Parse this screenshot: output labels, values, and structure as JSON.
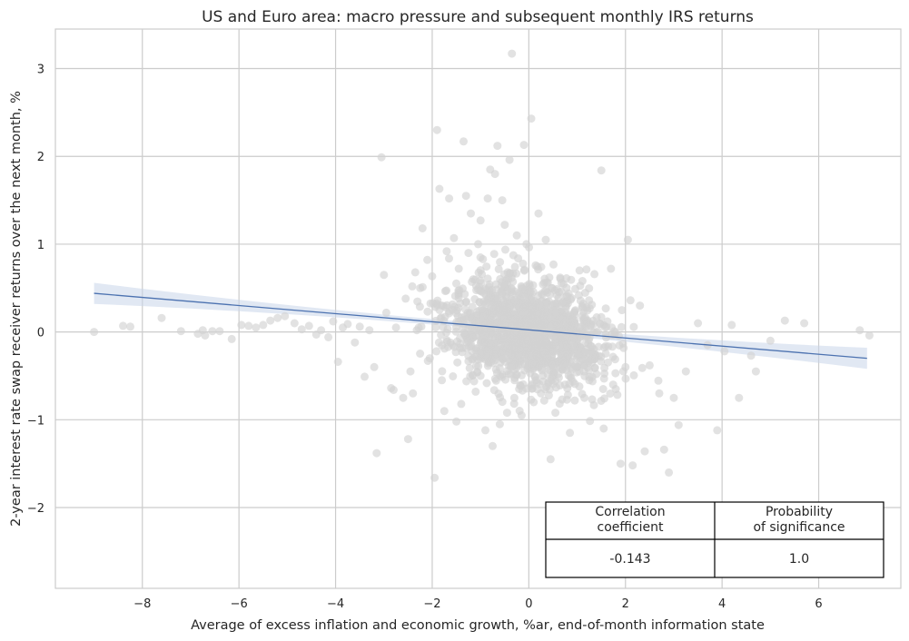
{
  "chart_data": {
    "type": "scatter",
    "title": "US and Euro area: macro pressure and subsequent monthly IRS returns",
    "xlabel": "Average of excess inflation and economic growth, %ar, end-of-month information state",
    "ylabel": "2-year interest rate swap receiver returns over the next month, %",
    "xlim": [
      -9.8,
      7.7
    ],
    "ylim": [
      -2.92,
      3.45
    ],
    "x_ticks": [
      -8,
      -6,
      -4,
      -2,
      0,
      2,
      4,
      6
    ],
    "y_ticks": [
      -2,
      -1,
      0,
      1,
      2,
      3
    ],
    "grid": true,
    "point_color": "#d3d3d3",
    "line_color": "#4c72b0",
    "band_color": "#c9d6ea",
    "regression": {
      "x_start": -9.0,
      "y_start": 0.44,
      "x_end": 7.0,
      "y_end": -0.3,
      "ci_half_width_ends": 0.12,
      "ci_half_width_center": 0.03
    },
    "points": [
      [
        -9.0,
        0.0
      ],
      [
        -8.4,
        0.07
      ],
      [
        -8.25,
        0.06
      ],
      [
        -7.6,
        0.16
      ],
      [
        -7.2,
        0.01
      ],
      [
        -6.85,
        -0.02
      ],
      [
        -6.75,
        0.02
      ],
      [
        -6.7,
        -0.04
      ],
      [
        -6.55,
        0.01
      ],
      [
        -6.4,
        0.01
      ],
      [
        -6.15,
        -0.08
      ],
      [
        -5.95,
        0.08
      ],
      [
        -5.8,
        0.07
      ],
      [
        -5.65,
        0.05
      ],
      [
        -5.5,
        0.08
      ],
      [
        -5.35,
        0.13
      ],
      [
        -5.2,
        0.16
      ],
      [
        -5.05,
        0.18
      ],
      [
        -4.85,
        0.1
      ],
      [
        -4.7,
        0.03
      ],
      [
        -4.55,
        0.07
      ],
      [
        -4.4,
        -0.03
      ],
      [
        -4.3,
        0.02
      ],
      [
        -4.15,
        -0.06
      ],
      [
        -4.05,
        0.12
      ],
      [
        -3.95,
        -0.34
      ],
      [
        -3.85,
        0.05
      ],
      [
        -3.75,
        0.09
      ],
      [
        -3.6,
        -0.12
      ],
      [
        -3.5,
        0.06
      ],
      [
        -3.4,
        -0.51
      ],
      [
        -3.3,
        0.02
      ],
      [
        -3.2,
        -0.4
      ],
      [
        -3.15,
        -1.38
      ],
      [
        -3.05,
        1.99
      ],
      [
        -3.0,
        0.65
      ],
      [
        -2.95,
        0.22
      ],
      [
        -2.85,
        -0.64
      ],
      [
        -2.8,
        -0.66
      ],
      [
        -2.75,
        0.05
      ],
      [
        -2.6,
        -0.75
      ],
      [
        -2.55,
        0.38
      ],
      [
        -2.5,
        -1.22
      ],
      [
        -2.45,
        -0.45
      ],
      [
        -2.4,
        -0.7
      ],
      [
        -2.35,
        0.68
      ],
      [
        -2.25,
        0.5
      ],
      [
        -2.2,
        1.18
      ],
      [
        -2.1,
        0.82
      ],
      [
        -2.05,
        -0.3
      ],
      [
        -1.95,
        -1.66
      ],
      [
        -1.9,
        2.3
      ],
      [
        -1.85,
        1.63
      ],
      [
        -1.8,
        -0.55
      ],
      [
        -1.75,
        -0.9
      ],
      [
        -1.7,
        0.92
      ],
      [
        -1.65,
        1.52
      ],
      [
        -1.55,
        1.07
      ],
      [
        -1.5,
        -1.02
      ],
      [
        -1.45,
        0.72
      ],
      [
        -1.4,
        -0.82
      ],
      [
        -1.35,
        2.17
      ],
      [
        -1.3,
        1.55
      ],
      [
        -1.25,
        0.9
      ],
      [
        -1.2,
        1.35
      ],
      [
        -1.15,
        0.6
      ],
      [
        -1.1,
        -0.68
      ],
      [
        -1.05,
        1.0
      ],
      [
        -1.0,
        1.27
      ],
      [
        -0.95,
        0.83
      ],
      [
        -0.9,
        -1.12
      ],
      [
        -0.85,
        1.52
      ],
      [
        -0.8,
        1.85
      ],
      [
        -0.75,
        -1.3
      ],
      [
        -0.7,
        1.8
      ],
      [
        -0.65,
        2.12
      ],
      [
        -0.6,
        -1.05
      ],
      [
        -0.55,
        1.5
      ],
      [
        -0.5,
        1.22
      ],
      [
        -0.45,
        -0.92
      ],
      [
        -0.4,
        1.96
      ],
      [
        -0.35,
        3.17
      ],
      [
        -0.3,
        -0.75
      ],
      [
        -0.25,
        1.1
      ],
      [
        -0.2,
        -0.65
      ],
      [
        -0.15,
        -0.95
      ],
      [
        -0.1,
        2.13
      ],
      [
        -0.05,
        1.0
      ],
      [
        0.05,
        2.43
      ],
      [
        0.1,
        -0.8
      ],
      [
        0.2,
        1.35
      ],
      [
        0.25,
        -0.7
      ],
      [
        0.35,
        1.05
      ],
      [
        0.45,
        -1.45
      ],
      [
        0.55,
        -0.92
      ],
      [
        0.65,
        0.62
      ],
      [
        0.75,
        -0.6
      ],
      [
        0.85,
        -1.15
      ],
      [
        0.95,
        -0.78
      ],
      [
        1.05,
        0.7
      ],
      [
        1.15,
        -0.75
      ],
      [
        1.25,
        -0.55
      ],
      [
        1.4,
        -0.48
      ],
      [
        1.5,
        1.84
      ],
      [
        1.55,
        -1.1
      ],
      [
        1.7,
        0.72
      ],
      [
        1.8,
        -0.65
      ],
      [
        1.9,
        -1.5
      ],
      [
        2.0,
        -0.4
      ],
      [
        2.05,
        1.05
      ],
      [
        2.15,
        -1.52
      ],
      [
        2.3,
        0.3
      ],
      [
        2.4,
        -1.36
      ],
      [
        2.5,
        -0.38
      ],
      [
        2.7,
        -0.7
      ],
      [
        2.8,
        -1.34
      ],
      [
        2.9,
        -1.6
      ],
      [
        3.0,
        -0.75
      ],
      [
        3.1,
        -1.06
      ],
      [
        3.25,
        -0.45
      ],
      [
        3.5,
        0.1
      ],
      [
        3.7,
        -0.15
      ],
      [
        3.9,
        -1.12
      ],
      [
        4.05,
        -0.22
      ],
      [
        4.2,
        0.08
      ],
      [
        4.35,
        -0.75
      ],
      [
        4.6,
        -0.27
      ],
      [
        4.7,
        -0.45
      ],
      [
        5.0,
        -0.1
      ],
      [
        5.3,
        0.13
      ],
      [
        5.7,
        0.1
      ],
      [
        6.85,
        0.02
      ],
      [
        7.05,
        -0.04
      ]
    ]
  },
  "stats_table": {
    "headers": [
      "Correlation\ncoefficient",
      "Probability\nof significance"
    ],
    "values": [
      "-0.143",
      "1.0"
    ]
  }
}
